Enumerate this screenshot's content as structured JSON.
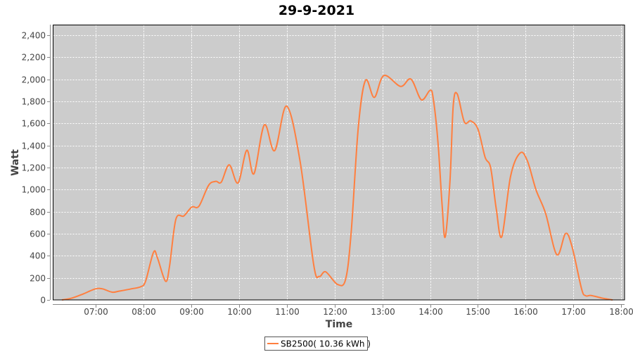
{
  "chart_data": {
    "type": "line",
    "title": "29-9-2021",
    "xlabel": "Time",
    "ylabel": "Watt",
    "ylim": [
      0,
      2500
    ],
    "xlim": [
      "06:07",
      "18:04"
    ],
    "yticks": [
      0,
      200,
      400,
      600,
      800,
      1000,
      1200,
      1400,
      1600,
      1800,
      2000,
      2200,
      2400
    ],
    "ytick_labels": [
      "0",
      "200",
      "400",
      "600",
      "800",
      "1,000",
      "1,200",
      "1,400",
      "1,600",
      "1,800",
      "2,000",
      "2,200",
      "2,400"
    ],
    "xticks": [
      "07:00",
      "08:00",
      "09:00",
      "10:00",
      "11:00",
      "12:00",
      "13:00",
      "14:00",
      "15:00",
      "16:00",
      "17:00",
      "18:00"
    ],
    "grid": true,
    "legend_placement": "bottom",
    "colors": {
      "plot_background": "#cccccc",
      "series": "#ff7f3f",
      "grid": "#ffffff"
    },
    "series": [
      {
        "name": "SB2500( 10.36 kWh )",
        "points": [
          [
            "06:18",
            0
          ],
          [
            "06:30",
            15
          ],
          [
            "06:45",
            55
          ],
          [
            "07:00",
            100
          ],
          [
            "07:09",
            100
          ],
          [
            "07:21",
            70
          ],
          [
            "07:30",
            80
          ],
          [
            "07:45",
            100
          ],
          [
            "07:57",
            120
          ],
          [
            "08:03",
            170
          ],
          [
            "08:13",
            432
          ],
          [
            "08:18",
            380
          ],
          [
            "08:28",
            170
          ],
          [
            "08:33",
            300
          ],
          [
            "08:41",
            730
          ],
          [
            "08:51",
            761
          ],
          [
            "09:01",
            842
          ],
          [
            "09:10",
            850
          ],
          [
            "09:22",
            1038
          ],
          [
            "09:31",
            1075
          ],
          [
            "09:38",
            1068
          ],
          [
            "09:48",
            1225
          ],
          [
            "09:59",
            1060
          ],
          [
            "10:10",
            1357
          ],
          [
            "10:19",
            1144
          ],
          [
            "10:32",
            1587
          ],
          [
            "10:45",
            1353
          ],
          [
            "11:00",
            1757
          ],
          [
            "11:17",
            1251
          ],
          [
            "11:34",
            315
          ],
          [
            "11:41",
            213
          ],
          [
            "11:49",
            255
          ],
          [
            "12:04",
            140
          ],
          [
            "12:14",
            187
          ],
          [
            "12:21",
            613
          ],
          [
            "12:30",
            1570
          ],
          [
            "12:39",
            1991
          ],
          [
            "12:50",
            1836
          ],
          [
            "13:02",
            2034
          ],
          [
            "13:23",
            1936
          ],
          [
            "13:36",
            2002
          ],
          [
            "13:49",
            1815
          ],
          [
            "14:00",
            1900
          ],
          [
            "14:04",
            1825
          ],
          [
            "14:10",
            1421
          ],
          [
            "14:15",
            868
          ],
          [
            "14:19",
            570
          ],
          [
            "14:25",
            1080
          ],
          [
            "14:29",
            1761
          ],
          [
            "14:34",
            1868
          ],
          [
            "14:43",
            1613
          ],
          [
            "14:51",
            1623
          ],
          [
            "15:00",
            1549
          ],
          [
            "15:09",
            1294
          ],
          [
            "15:16",
            1198
          ],
          [
            "15:23",
            825
          ],
          [
            "15:30",
            574
          ],
          [
            "15:41",
            1123
          ],
          [
            "15:53",
            1332
          ],
          [
            "16:02",
            1261
          ],
          [
            "16:13",
            996
          ],
          [
            "16:25",
            783
          ],
          [
            "16:39",
            410
          ],
          [
            "16:50",
            602
          ],
          [
            "16:58",
            485
          ],
          [
            "17:10",
            102
          ],
          [
            "17:15",
            38
          ],
          [
            "17:22",
            40
          ],
          [
            "17:36",
            16
          ],
          [
            "17:49",
            0
          ]
        ]
      }
    ]
  }
}
